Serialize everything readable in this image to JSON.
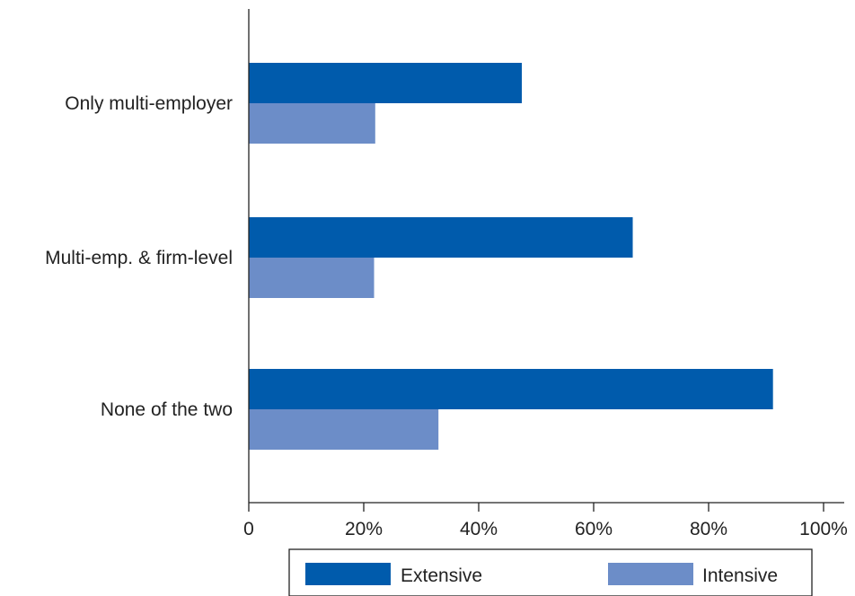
{
  "chart_data": {
    "type": "bar",
    "orientation": "horizontal",
    "categories": [
      "Only multi-employer",
      "Multi-emp. & firm-level",
      "None of the two"
    ],
    "series": [
      {
        "name": "Extensive",
        "values": [
          47.5,
          66.8,
          91.2
        ],
        "color": "#005bac"
      },
      {
        "name": "Intensive",
        "values": [
          22.0,
          21.8,
          33.0
        ],
        "color": "#6c8dc8"
      }
    ],
    "x_ticks": [
      0,
      20,
      40,
      60,
      80,
      100
    ],
    "x_tick_labels": [
      "0",
      "20%",
      "40%",
      "60%",
      "80%",
      "100%"
    ],
    "xlim": [
      0,
      100
    ],
    "grid": false,
    "legend_position": "bottom"
  }
}
